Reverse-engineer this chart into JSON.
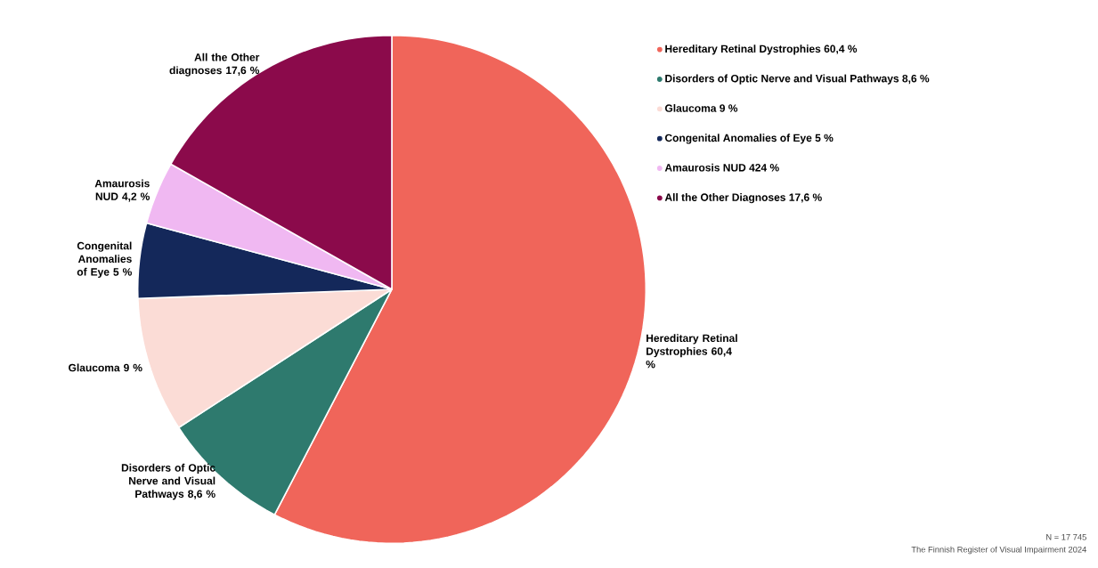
{
  "chart_data": {
    "type": "pie",
    "categories": [
      "Hereditary Retinal Dystrophies 60,4 %",
      "Disorders of Optic Nerve and Visual Pathways 8,6 %",
      "Glaucoma 9 %",
      "Congenital Anomalies of Eye 5 %",
      "Amaurosis NUD 424 %",
      "All the Other Diagnoses 17,6 %"
    ],
    "values": [
      60.4,
      8.6,
      9,
      5,
      4.2,
      17.6
    ],
    "colors": [
      "#f0655a",
      "#2e7a6e",
      "#fbdcd6",
      "#14285a",
      "#f0b8f2",
      "#8b0a4b"
    ],
    "value_labels": [
      "Hereditary Retinal Dystrophies 60,4 %",
      "Disorders of Optic Nerve and Visual Pathways 8,6 %",
      "Glaucoma 9 %",
      "Congenital Anomalies of Eye 5 %",
      "Amaurosis NUD 4,2 %",
      "All the Other diagnoses 17,6 %"
    ],
    "legend": "top right",
    "annotations": [
      "N = 17 745",
      "The Finnish Register of Visual Impairment 2024"
    ]
  }
}
